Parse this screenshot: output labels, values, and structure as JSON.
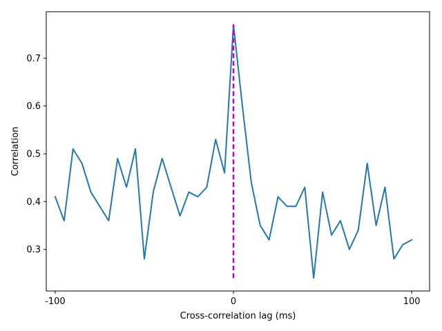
{
  "chart_data": {
    "type": "line",
    "title": "",
    "xlabel": "Cross-correlation lag (ms)",
    "ylabel": "Correlation",
    "xlim": [
      -105,
      110
    ],
    "ylim": [
      0.213,
      0.797
    ],
    "xticks": [
      -100,
      0,
      100
    ],
    "xtick_labels": [
      "-100",
      "0",
      "100"
    ],
    "yticks": [
      0.3,
      0.4,
      0.5,
      0.6,
      0.7
    ],
    "ytick_labels": [
      "0.3",
      "0.4",
      "0.5",
      "0.6",
      "0.7"
    ],
    "grid": false,
    "series": [
      {
        "color": "#1f77b4",
        "x": [
          -100,
          -95,
          -90,
          -85,
          -80,
          -75,
          -70,
          -65,
          -60,
          -55,
          -50,
          -45,
          -40,
          -35,
          -30,
          -25,
          -20,
          -15,
          -10,
          -5,
          0,
          5,
          10,
          15,
          20,
          25,
          30,
          35,
          40,
          45,
          50,
          55,
          60,
          65,
          70,
          75,
          80,
          85,
          90,
          95,
          100
        ],
        "y": [
          0.41,
          0.36,
          0.51,
          0.48,
          0.42,
          0.39,
          0.36,
          0.49,
          0.43,
          0.51,
          0.28,
          0.42,
          0.49,
          0.43,
          0.37,
          0.42,
          0.41,
          0.43,
          0.53,
          0.46,
          0.77,
          0.6,
          0.44,
          0.35,
          0.32,
          0.41,
          0.39,
          0.39,
          0.43,
          0.24,
          0.42,
          0.33,
          0.36,
          0.3,
          0.34,
          0.48,
          0.35,
          0.43,
          0.28,
          0.31,
          0.32
        ]
      }
    ],
    "annotations": [
      {
        "type": "vline",
        "x": 0,
        "y_from": 0.24,
        "y_to": 0.77,
        "color": "#bf00bf",
        "style": "dashed"
      }
    ]
  }
}
